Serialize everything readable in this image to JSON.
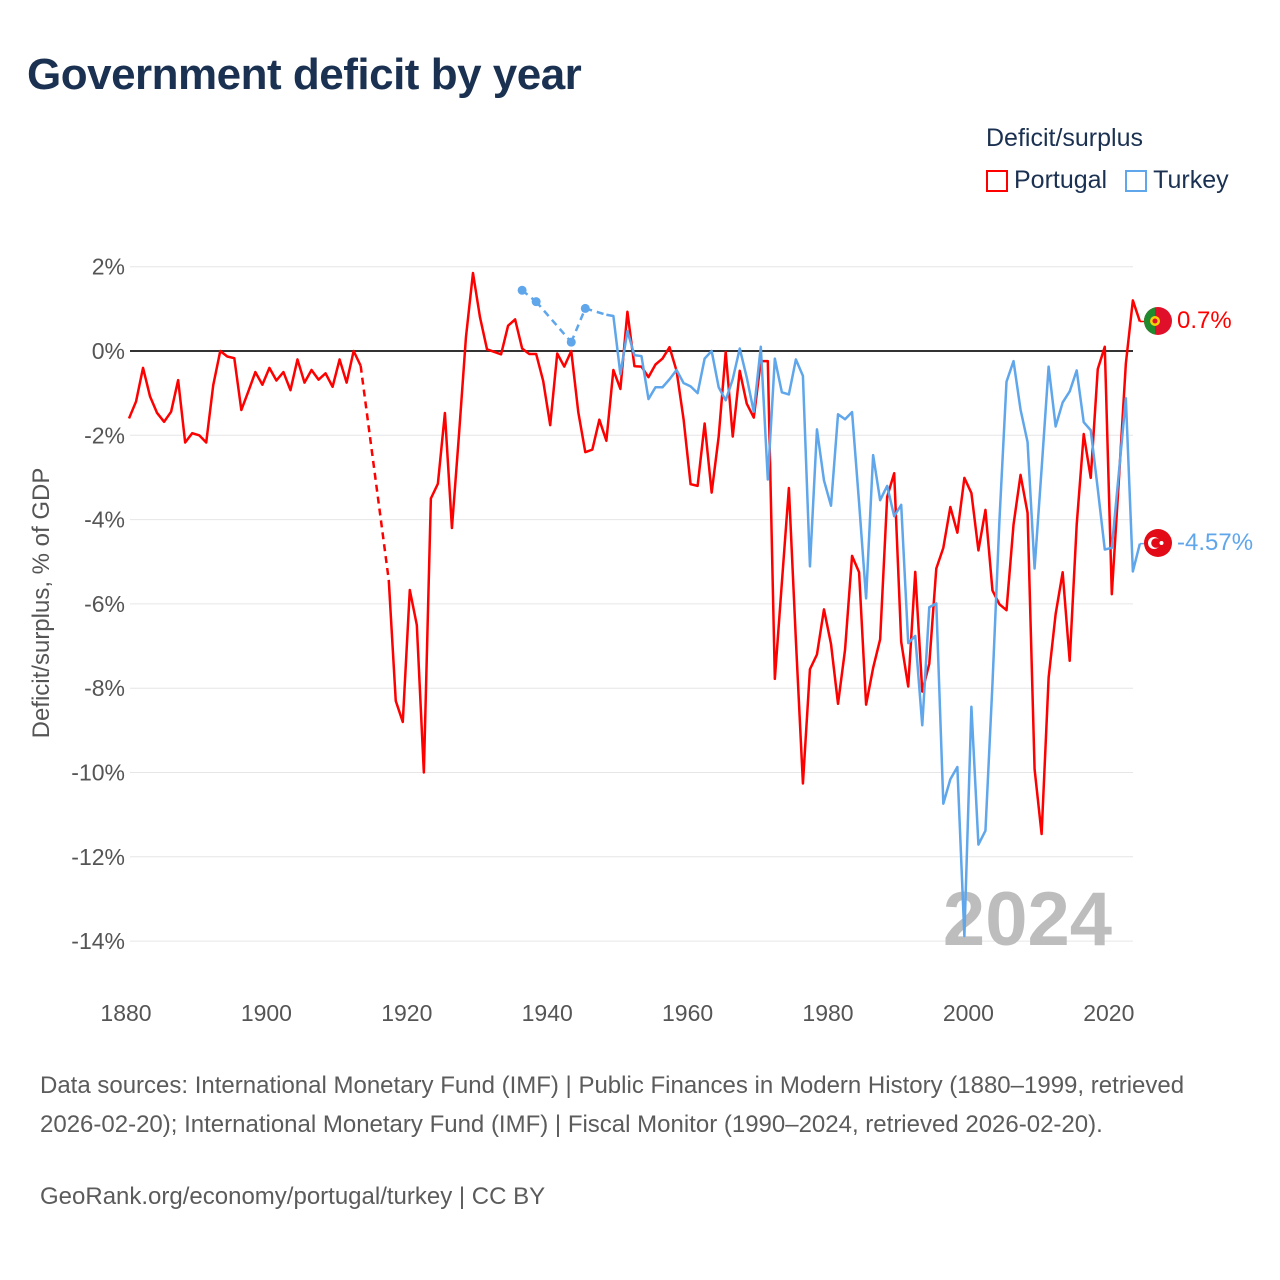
{
  "title": "Government deficit by year",
  "legend": {
    "title": "Deficit/surplus",
    "items": [
      {
        "label": "Portugal",
        "color": "#ff0000"
      },
      {
        "label": "Turkey",
        "color": "#5fa6eb"
      }
    ]
  },
  "chart_data": {
    "type": "line",
    "title": "Government deficit by year",
    "xlabel": "",
    "ylabel": "Deficit/surplus, % of GDP",
    "xlim": [
      1880,
      2024
    ],
    "ylim": [
      -14,
      2
    ],
    "x_ticks": [
      "1880",
      "1900",
      "1920",
      "1940",
      "1960",
      "1980",
      "2000",
      "2020"
    ],
    "x_tick_values": [
      1880,
      1900,
      1920,
      1940,
      1960,
      1980,
      2000,
      2020
    ],
    "y_ticks": [
      "2%",
      "0%",
      "-2%",
      "-4%",
      "-6%",
      "-8%",
      "-10%",
      "-12%",
      "-14%"
    ],
    "y_tick_values": [
      2,
      0,
      -2,
      -4,
      -6,
      -8,
      -10,
      -12,
      -14
    ],
    "grid": true,
    "legend_position": "top-right",
    "watermark_year": "2024",
    "series": [
      {
        "name": "Portugal",
        "color": "#ff0000",
        "start_year": 1880,
        "end_label": "0.7%",
        "values": [
          -1.6,
          -1.2,
          -0.4,
          -1.08,
          -1.47,
          -1.68,
          -1.44,
          -0.69,
          -2.17,
          -1.95,
          -2.0,
          -2.17,
          -0.81,
          0,
          -0.13,
          -0.17,
          -1.4,
          -0.96,
          -0.5,
          -0.8,
          -0.4,
          -0.7,
          -0.5,
          -0.93,
          -0.2,
          -0.75,
          -0.45,
          -0.68,
          -0.53,
          -0.85,
          -0.2,
          -0.75,
          0.0,
          -0.35,
          null,
          null,
          null,
          -5.43,
          -8.3,
          -8.8,
          -5.67,
          -6.5,
          -10.0,
          -3.5,
          -3.15,
          -1.47,
          -4.2,
          -2.0,
          0.33,
          1.85,
          0.8,
          0.04,
          -0.02,
          -0.08,
          0.6,
          0.75,
          0.06,
          -0.07,
          -0.07,
          -0.71,
          -1.76,
          -0.06,
          -0.37,
          0,
          -1.45,
          -2.4,
          -2.34,
          -1.63,
          -2.13,
          -0.45,
          -0.9,
          0.93,
          -0.36,
          -0.37,
          -0.62,
          -0.32,
          -0.18,
          0.09,
          -0.47,
          -1.62,
          -3.16,
          -3.2,
          -1.72,
          -3.36,
          -2.03,
          -0.02,
          -2.03,
          -0.47,
          -1.25,
          -1.58,
          -0.24,
          -0.24,
          -7.78,
          -5.5,
          -3.25,
          -6.87,
          -10.26,
          -7.55,
          -7.2,
          -6.13,
          -6.95,
          -8.37,
          -7.09,
          -4.86,
          -5.25,
          -8.39,
          -7.52,
          -6.84,
          -3.46,
          -2.9,
          -6.9,
          -7.96,
          -5.24,
          -8.08,
          -7.42,
          -5.16,
          -4.67,
          -3.7,
          -4.31,
          -3.01,
          -3.37,
          -4.73,
          -3.77,
          -5.68,
          -6.01,
          -6.15,
          -4.12,
          -2.94,
          -3.84,
          -9.92,
          -11.46,
          -7.75,
          -6.24,
          -5.25,
          -7.35,
          -4.12,
          -1.97,
          -3.01,
          -0.43,
          0.1,
          -5.77,
          -3.08,
          -0.3,
          1.2,
          0.7
        ]
      },
      {
        "name": "Turkey",
        "color": "#5fa6eb",
        "start_year": 1936,
        "end_label": "-4.57%",
        "values": [
          1.44,
          null,
          1.17,
          null,
          null,
          null,
          null,
          0.21,
          null,
          1.01,
          null,
          null,
          0.86,
          0.83,
          -0.55,
          0.47,
          -0.1,
          -0.12,
          -1.14,
          -0.86,
          -0.86,
          -0.67,
          -0.45,
          -0.76,
          -0.84,
          -1.0,
          -0.18,
          0.0,
          -0.86,
          -1.17,
          -0.67,
          0.06,
          -0.63,
          -1.44,
          0.1,
          -3.05,
          -0.18,
          -0.98,
          -1.03,
          -0.2,
          -0.59,
          -5.11,
          -1.86,
          -3.07,
          -3.67,
          -1.5,
          -1.62,
          -1.45,
          -3.6,
          -5.87,
          -2.47,
          -3.54,
          -3.2,
          -3.92,
          -3.65,
          -6.93,
          -6.76,
          -8.88,
          -6.08,
          -5.99,
          -10.74,
          -10.16,
          -9.87,
          -13.88,
          -8.44,
          -11.71,
          -11.38,
          -7.9,
          -4.0,
          -0.73,
          -0.24,
          -1.39,
          -2.16,
          -5.16,
          -2.8,
          -0.37,
          -1.79,
          -1.22,
          -0.96,
          -0.46,
          -1.69,
          -1.88,
          -3.27,
          -4.71,
          -4.67,
          -2.9,
          -1.12,
          -5.23,
          -4.57
        ]
      }
    ]
  },
  "sources": "Data sources: International Monetary Fund (IMF) | Public Finances in Modern History (1880–1999, retrieved 2026-02-20); International Monetary Fund (IMF) | Fiscal Monitor (1990–2024, retrieved 2026-02-20).",
  "footer": "GeoRank.org/economy/portugal/turkey | CC BY"
}
